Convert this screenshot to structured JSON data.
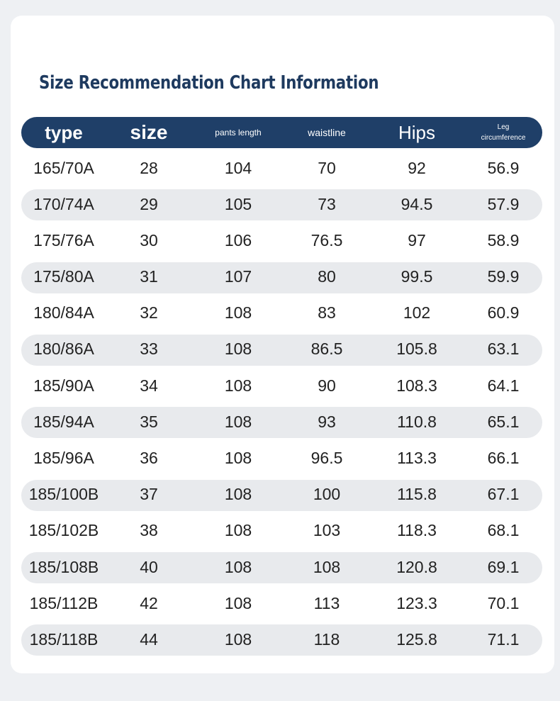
{
  "title": "Size Recommendation Chart Information",
  "headers": [
    "type",
    "size",
    "pants length",
    "waistline",
    "Hips",
    "Leg circumference"
  ],
  "rows": [
    [
      "165/70A",
      "28",
      "104",
      "70",
      "92",
      "56.9"
    ],
    [
      "170/74A",
      "29",
      "105",
      "73",
      "94.5",
      "57.9"
    ],
    [
      "175/76A",
      "30",
      "106",
      "76.5",
      "97",
      "58.9"
    ],
    [
      "175/80A",
      "31",
      "107",
      "80",
      "99.5",
      "59.9"
    ],
    [
      "180/84A",
      "32",
      "108",
      "83",
      "102",
      "60.9"
    ],
    [
      "180/86A",
      "33",
      "108",
      "86.5",
      "105.8",
      "63.1"
    ],
    [
      "185/90A",
      "34",
      "108",
      "90",
      "108.3",
      "64.1"
    ],
    [
      "185/94A",
      "35",
      "108",
      "93",
      "110.8",
      "65.1"
    ],
    [
      "185/96A",
      "36",
      "108",
      "96.5",
      "113.3",
      "66.1"
    ],
    [
      "185/100B",
      "37",
      "108",
      "100",
      "115.8",
      "67.1"
    ],
    [
      "185/102B",
      "38",
      "108",
      "103",
      "118.3",
      "68.1"
    ],
    [
      "185/108B",
      "40",
      "108",
      "108",
      "120.8",
      "69.1"
    ],
    [
      "185/112B",
      "42",
      "108",
      "113",
      "123.3",
      "70.1"
    ],
    [
      "185/118B",
      "44",
      "108",
      "118",
      "125.8",
      "71.1"
    ]
  ]
}
